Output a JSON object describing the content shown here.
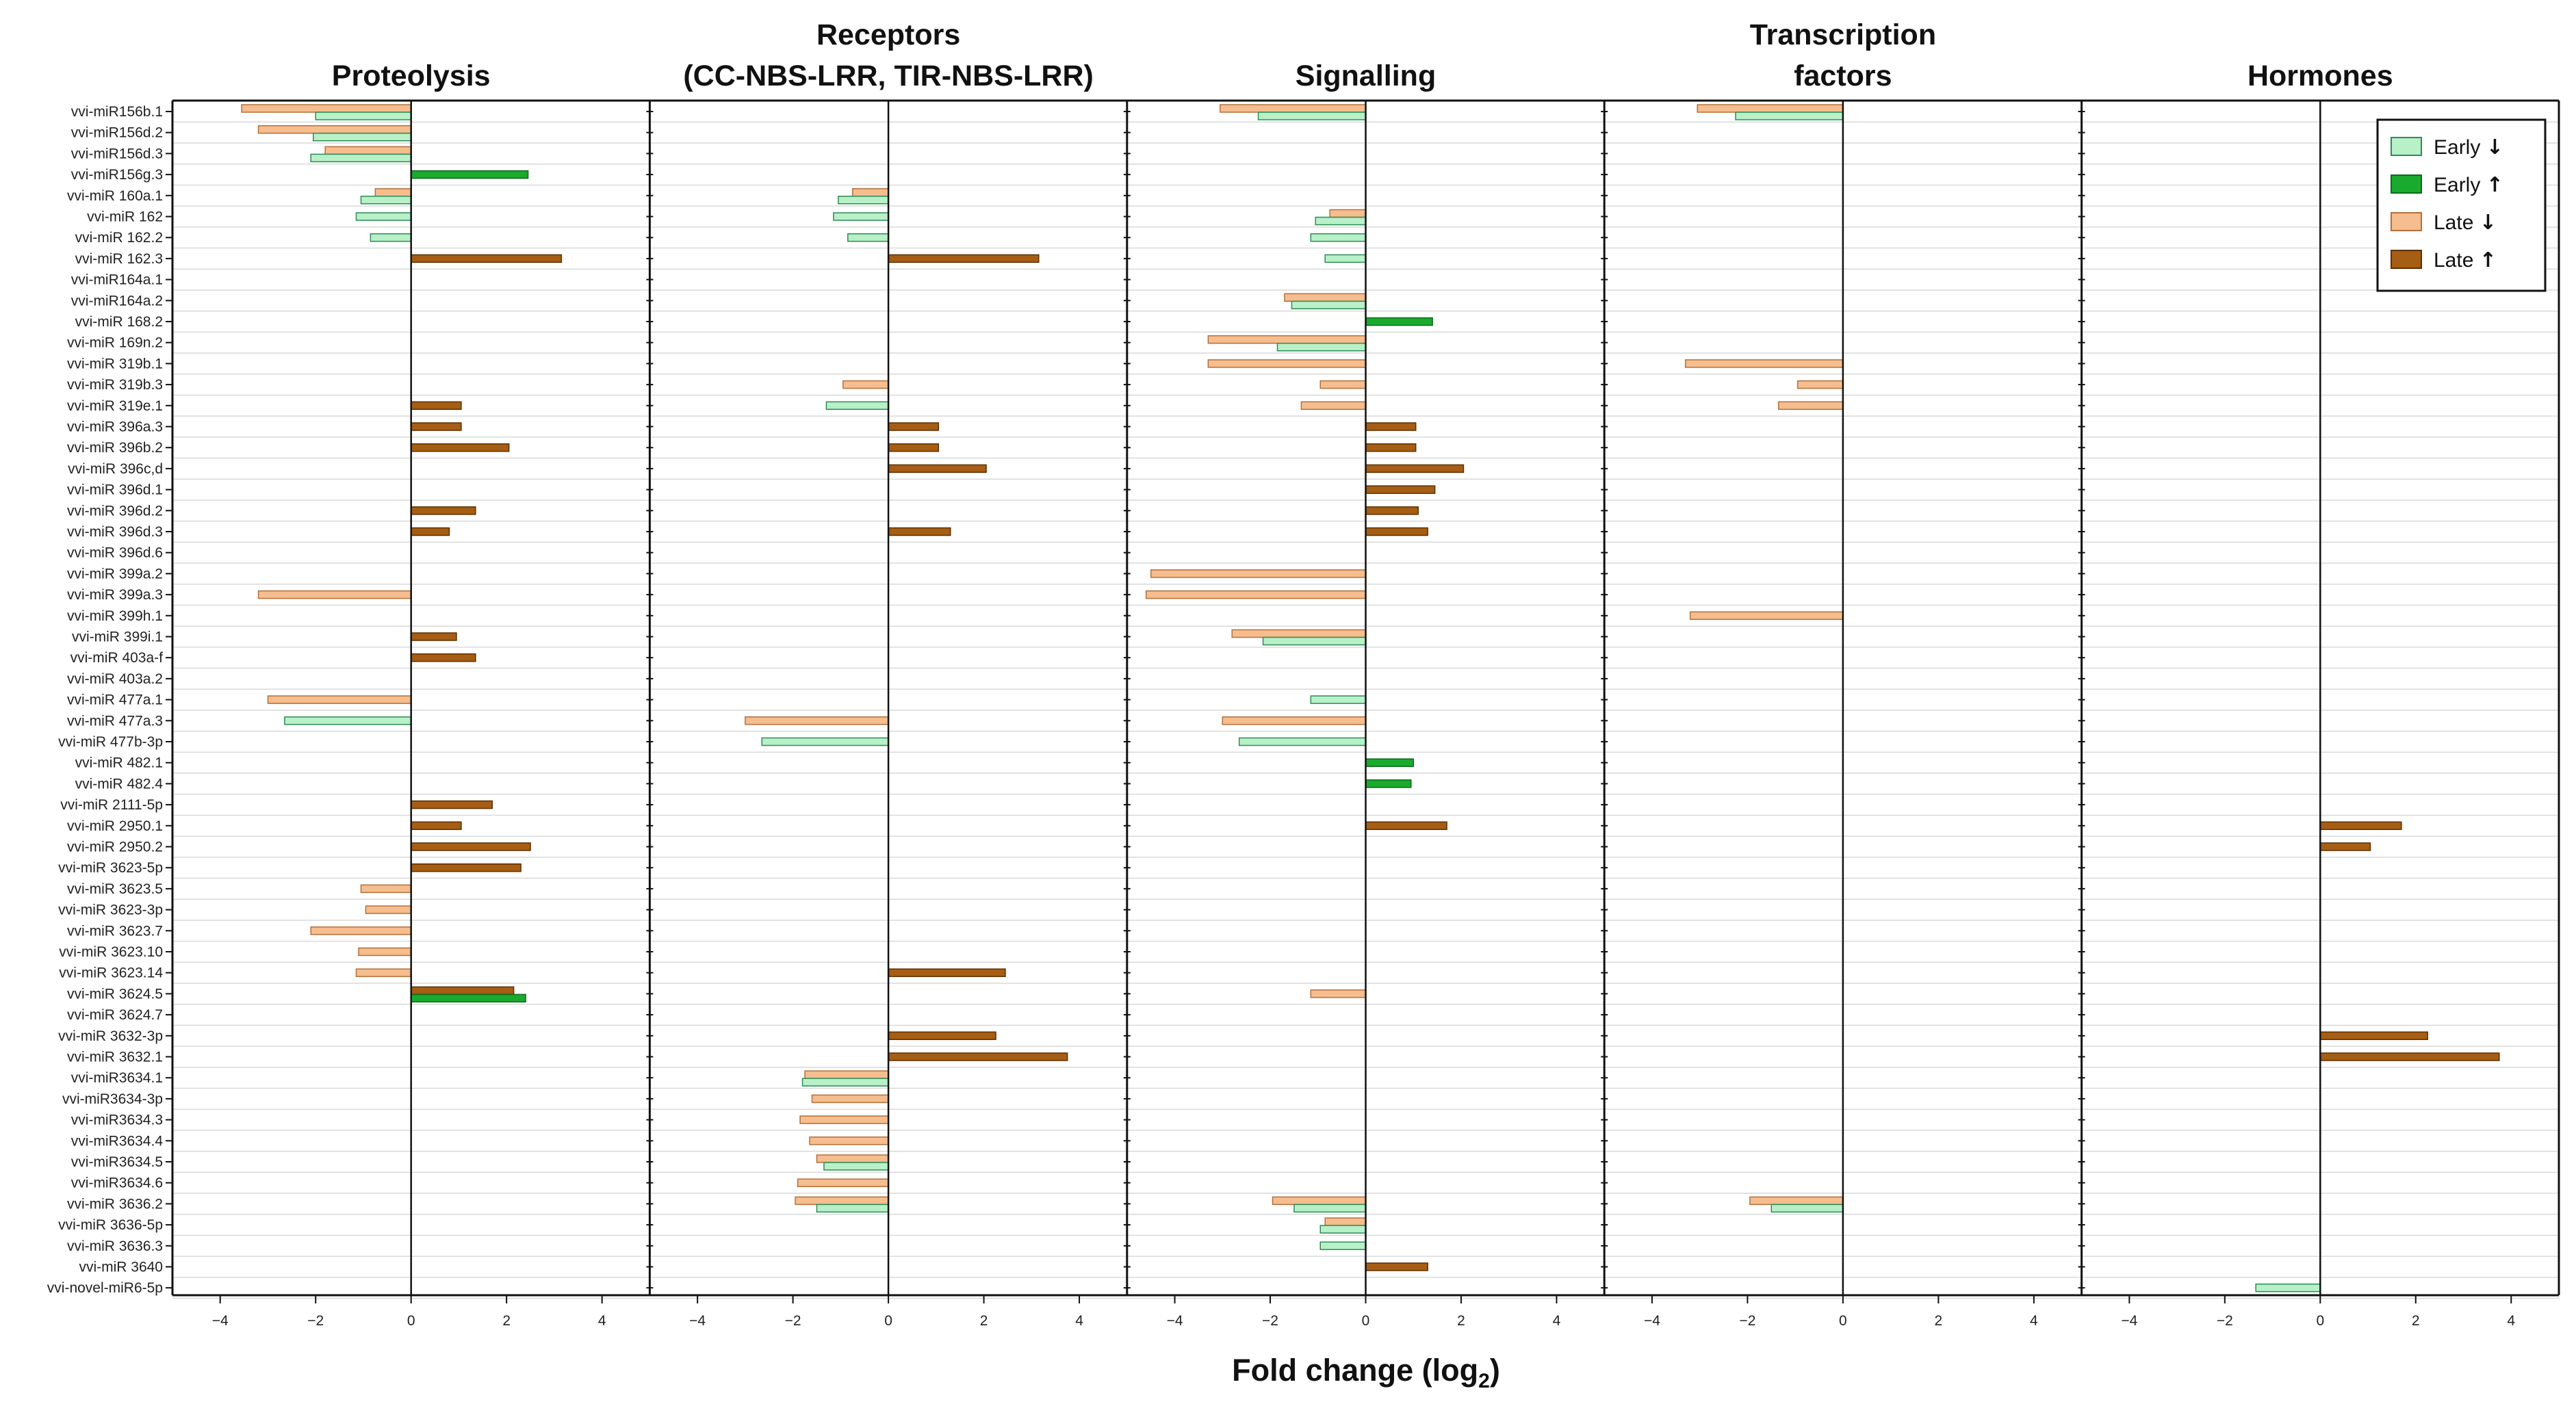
{
  "chart_data": {
    "type": "bar",
    "orientation": "horizontal",
    "xlabel": "Fold change (log2)",
    "xlabel_main": "Fold change (log",
    "xlabel_sub": "2",
    "xlabel_close": ")",
    "xlim": [
      -5,
      5
    ],
    "xticks": [
      -4,
      -2,
      0,
      2,
      4
    ],
    "xtick_labels": [
      "−4",
      "−2",
      "0",
      "2",
      "4"
    ],
    "legend_position": "top-right",
    "legend_arrow_down": "↓",
    "legend_arrow_up": "↑",
    "series": [
      {
        "name": "Early ↓",
        "label": "Early",
        "direction": "down",
        "fill": "#b8f0c8",
        "stroke": "#2e8b57"
      },
      {
        "name": "Early ↑",
        "label": "Early",
        "direction": "up",
        "fill": "#1aaa2e",
        "stroke": "#0b6b1a"
      },
      {
        "name": "Late ↓",
        "label": "Late",
        "direction": "down",
        "fill": "#f6bd8e",
        "stroke": "#b3703a"
      },
      {
        "name": "Late ↑",
        "label": "Late",
        "direction": "up",
        "fill": "#a65d14",
        "stroke": "#5c3000"
      }
    ],
    "categories": [
      "vvi-miR156b.1",
      "vvi-miR156d.2",
      "vvi-miR156d.3",
      "vvi-miR156g.3",
      "vvi-miR 160a.1",
      "vvi-miR 162",
      "vvi-miR 162.2",
      "vvi-miR 162.3",
      "vvi-miR164a.1",
      "vvi-miR164a.2",
      "vvi-miR 168.2",
      "vvi-miR 169n.2",
      "vvi-miR 319b.1",
      "vvi-miR 319b.3",
      "vvi-miR 319e.1",
      "vvi-miR 396a.3",
      "vvi-miR 396b.2",
      "vvi-miR 396c,d",
      "vvi-miR 396d.1",
      "vvi-miR 396d.2",
      "vvi-miR 396d.3",
      "vvi-miR 396d.6",
      "vvi-miR 399a.2",
      "vvi-miR 399a.3",
      "vvi-miR 399h.1",
      "vvi-miR 399i.1",
      "vvi-miR 403a-f",
      "vvi-miR 403a.2",
      "vvi-miR 477a.1",
      "vvi-miR 477a.3",
      "vvi-miR 477b-3p",
      "vvi-miR 482.1",
      "vvi-miR 482.4",
      "vvi-miR 2111-5p",
      "vvi-miR 2950.1",
      "vvi-miR 2950.2",
      "vvi-miR 3623-5p",
      "vvi-miR 3623.5",
      "vvi-miR 3623-3p",
      "vvi-miR 3623.7",
      "vvi-miR 3623.10",
      "vvi-miR 3623.14",
      "vvi-miR 3624.5",
      "vvi-miR 3624.7",
      "vvi-miR 3632-3p",
      "vvi-miR 3632.1",
      "vvi-miR3634.1",
      "vvi-miR3634-3p",
      "vvi-miR3634.3",
      "vvi-miR3634.4",
      "vvi-miR3634.5",
      "vvi-miR3634.6",
      "vvi-miR 3636.2",
      "vvi-miR 3636-5p",
      "vvi-miR 3636.3",
      "vvi-miR 3640",
      "vvi-novel-miR6-5p"
    ],
    "panels": [
      {
        "title_lines": [
          "Proteolysis"
        ],
        "bars": [
          {
            "row": 0,
            "late": -3.55,
            "early": -2.0
          },
          {
            "row": 1,
            "late": -3.2,
            "early": -2.05
          },
          {
            "row": 2,
            "late": -1.8,
            "early": -2.1
          },
          {
            "row": 3,
            "early": 2.45
          },
          {
            "row": 4,
            "late": -0.75,
            "early": -1.05
          },
          {
            "row": 5,
            "early": -1.15
          },
          {
            "row": 6,
            "early": -0.85
          },
          {
            "row": 7,
            "late": 3.15
          },
          {
            "row": 14,
            "late": 1.05
          },
          {
            "row": 15,
            "late": 1.05
          },
          {
            "row": 16,
            "late": 2.05
          },
          {
            "row": 19,
            "late": 1.35
          },
          {
            "row": 20,
            "late": 0.8
          },
          {
            "row": 23,
            "late": -3.2
          },
          {
            "row": 25,
            "late": 0.95
          },
          {
            "row": 26,
            "late": 1.35
          },
          {
            "row": 28,
            "late": -3.0
          },
          {
            "row": 29,
            "early": -2.65
          },
          {
            "row": 33,
            "late": 1.7
          },
          {
            "row": 34,
            "late": 1.05
          },
          {
            "row": 35,
            "late": 2.5
          },
          {
            "row": 36,
            "late": 2.3
          },
          {
            "row": 37,
            "late": -1.05
          },
          {
            "row": 38,
            "late": -0.95
          },
          {
            "row": 39,
            "late": -2.1
          },
          {
            "row": 40,
            "late": -1.1
          },
          {
            "row": 41,
            "late": -1.15
          },
          {
            "row": 42,
            "late": 2.15,
            "early": 2.4
          }
        ]
      },
      {
        "title_lines": [
          "Receptors",
          "(CC-NBS-LRR, TIR-NBS-LRR)"
        ],
        "bars": [
          {
            "row": 4,
            "late": -0.75,
            "early": -1.05
          },
          {
            "row": 5,
            "early": -1.15
          },
          {
            "row": 6,
            "early": -0.85
          },
          {
            "row": 7,
            "late": 3.15
          },
          {
            "row": 13,
            "late": -0.95
          },
          {
            "row": 14,
            "early": -1.3
          },
          {
            "row": 15,
            "late": 1.05
          },
          {
            "row": 16,
            "late": 1.05
          },
          {
            "row": 17,
            "late": 2.05
          },
          {
            "row": 20,
            "late": 1.3
          },
          {
            "row": 29,
            "late": -3.0
          },
          {
            "row": 30,
            "early": -2.65
          },
          {
            "row": 41,
            "late": 2.45
          },
          {
            "row": 44,
            "late": 2.25
          },
          {
            "row": 45,
            "late": 3.75
          },
          {
            "row": 46,
            "late": -1.75,
            "early": -1.8
          },
          {
            "row": 47,
            "late": -1.6
          },
          {
            "row": 48,
            "late": -1.85
          },
          {
            "row": 49,
            "late": -1.65
          },
          {
            "row": 50,
            "late": -1.5,
            "early": -1.35
          },
          {
            "row": 51,
            "late": -1.9
          },
          {
            "row": 52,
            "late": -1.95,
            "early": -1.5
          }
        ]
      },
      {
        "title_lines": [
          "Signalling"
        ],
        "bars": [
          {
            "row": 0,
            "late": -3.05,
            "early": -2.25
          },
          {
            "row": 5,
            "late": -0.75,
            "early": -1.05
          },
          {
            "row": 6,
            "early": -1.15
          },
          {
            "row": 7,
            "early": -0.85
          },
          {
            "row": 9,
            "late": -1.7,
            "early": -1.55
          },
          {
            "row": 10,
            "early": 1.4
          },
          {
            "row": 11,
            "late": -3.3,
            "early": -1.85
          },
          {
            "row": 12,
            "late": -3.3
          },
          {
            "row": 13,
            "late": -0.95
          },
          {
            "row": 14,
            "late": -1.35
          },
          {
            "row": 15,
            "late": 1.05
          },
          {
            "row": 16,
            "late": 1.05
          },
          {
            "row": 17,
            "late": 2.05
          },
          {
            "row": 18,
            "late": 1.45
          },
          {
            "row": 19,
            "late": 1.1
          },
          {
            "row": 20,
            "late": 1.3
          },
          {
            "row": 22,
            "late": -4.5
          },
          {
            "row": 23,
            "late": -4.6
          },
          {
            "row": 25,
            "late": -2.8,
            "early": -2.15
          },
          {
            "row": 28,
            "early": -1.15
          },
          {
            "row": 29,
            "late": -3.0
          },
          {
            "row": 30,
            "early": -2.65
          },
          {
            "row": 31,
            "early": 1.0
          },
          {
            "row": 32,
            "early": 0.95
          },
          {
            "row": 34,
            "late": 1.7
          },
          {
            "row": 42,
            "late": -1.15
          },
          {
            "row": 52,
            "late": -1.95,
            "early": -1.5
          },
          {
            "row": 53,
            "late": -0.85,
            "early": -0.95
          },
          {
            "row": 54,
            "early": -0.95
          },
          {
            "row": 55,
            "late": 1.3
          }
        ]
      },
      {
        "title_lines": [
          "Transcription",
          "factors"
        ],
        "bars": [
          {
            "row": 0,
            "late": -3.05,
            "early": -2.25
          },
          {
            "row": 12,
            "late": -3.3
          },
          {
            "row": 13,
            "late": -0.95
          },
          {
            "row": 14,
            "late": -1.35
          },
          {
            "row": 24,
            "late": -3.2
          },
          {
            "row": 52,
            "late": -1.95,
            "early": -1.5
          }
        ]
      },
      {
        "title_lines": [
          "Hormones"
        ],
        "bars": [
          {
            "row": 34,
            "late": 1.7
          },
          {
            "row": 35,
            "late": 1.05
          },
          {
            "row": 44,
            "late": 2.25
          },
          {
            "row": 45,
            "late": 3.75
          },
          {
            "row": 56,
            "early": -1.35
          }
        ]
      }
    ]
  }
}
